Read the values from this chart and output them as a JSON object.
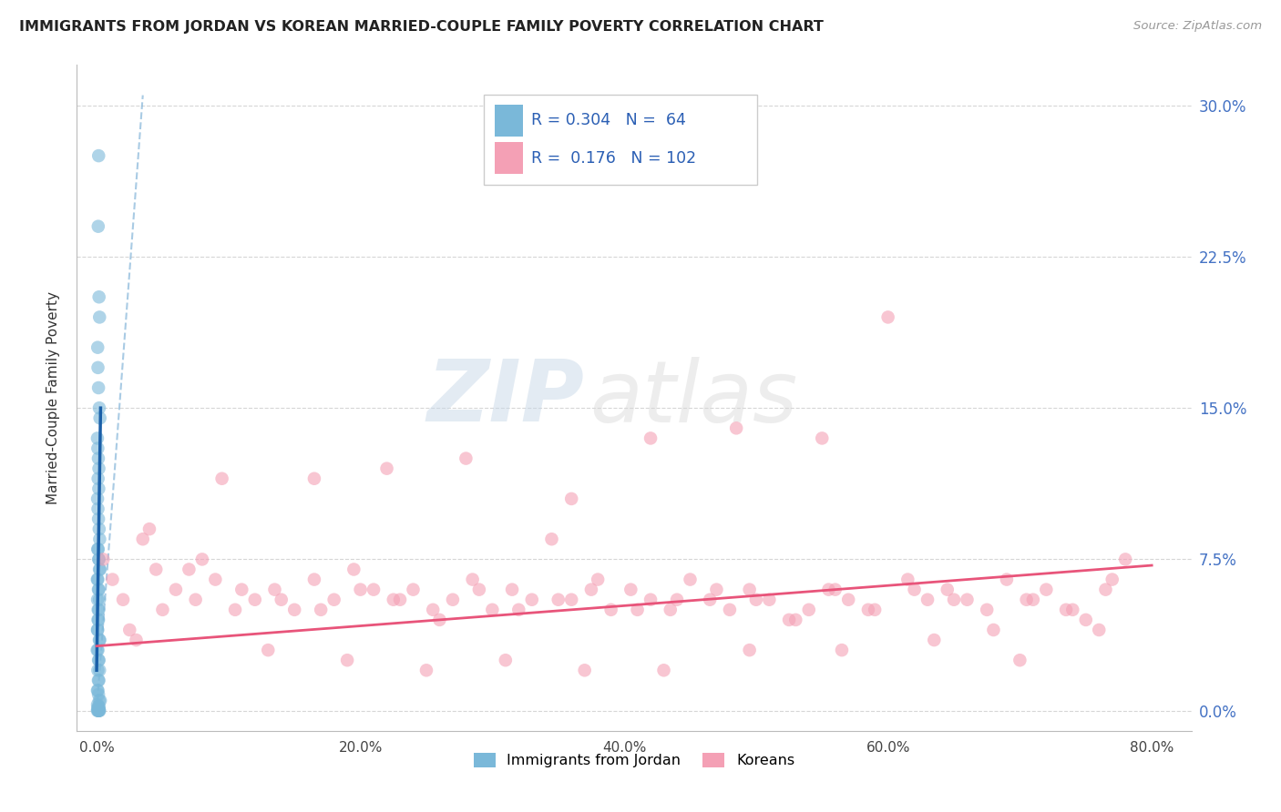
{
  "title": "IMMIGRANTS FROM JORDAN VS KOREAN MARRIED-COUPLE FAMILY POVERTY CORRELATION CHART",
  "source": "Source: ZipAtlas.com",
  "xlabel_ticks": [
    "0.0%",
    "20.0%",
    "40.0%",
    "60.0%",
    "80.0%"
  ],
  "xlabel_tick_vals": [
    0.0,
    20.0,
    40.0,
    60.0,
    80.0
  ],
  "ylabel_ticks": [
    "0.0%",
    "7.5%",
    "15.0%",
    "22.5%",
    "30.0%"
  ],
  "ylabel_tick_vals": [
    0.0,
    7.5,
    15.0,
    22.5,
    30.0
  ],
  "xlim": [
    -1.5,
    83.0
  ],
  "ylim": [
    -1.0,
    32.0
  ],
  "blue_R": 0.304,
  "blue_N": 64,
  "pink_R": 0.176,
  "pink_N": 102,
  "blue_color": "#7ab8d9",
  "pink_color": "#f4a0b5",
  "blue_line_color": "#1a5fa8",
  "pink_line_color": "#e8547a",
  "blue_dash_color": "#85b5d9",
  "background_color": "#ffffff",
  "watermark_zip": "ZIP",
  "watermark_atlas": "atlas",
  "legend_label_blue": "Immigrants from Jordan",
  "legend_label_pink": "Koreans",
  "grid_color": "#cccccc",
  "blue_scatter_x": [
    0.15,
    0.12,
    0.18,
    0.22,
    0.08,
    0.1,
    0.14,
    0.2,
    0.25,
    0.06,
    0.09,
    0.13,
    0.17,
    0.11,
    0.16,
    0.07,
    0.1,
    0.14,
    0.19,
    0.23,
    0.08,
    0.12,
    0.15,
    0.18,
    0.21,
    0.26,
    0.05,
    0.09,
    0.13,
    0.17,
    0.21,
    0.07,
    0.11,
    0.16,
    0.1,
    0.14,
    0.06,
    0.08,
    0.2,
    0.24,
    0.04,
    0.1,
    0.14,
    0.18,
    0.22,
    0.09,
    0.13,
    0.17,
    0.06,
    0.1,
    0.14,
    0.2,
    0.28,
    0.07,
    0.12,
    0.19,
    0.08,
    0.15,
    0.22,
    0.11,
    0.17,
    0.06,
    0.12,
    0.19
  ],
  "blue_scatter_y": [
    27.5,
    24.0,
    20.5,
    19.5,
    18.0,
    17.0,
    16.0,
    15.0,
    14.5,
    13.5,
    13.0,
    12.5,
    12.0,
    11.5,
    11.0,
    10.5,
    10.0,
    9.5,
    9.0,
    8.5,
    8.0,
    8.0,
    7.5,
    7.5,
    7.0,
    7.0,
    6.5,
    6.5,
    6.0,
    6.0,
    5.5,
    5.5,
    5.0,
    5.0,
    4.5,
    4.5,
    4.0,
    4.0,
    3.5,
    3.5,
    3.0,
    3.0,
    2.5,
    2.5,
    2.0,
    2.0,
    1.5,
    1.5,
    1.0,
    1.0,
    0.8,
    0.5,
    0.5,
    0.3,
    0.2,
    0.2,
    0.1,
    0.1,
    0.0,
    0.0,
    0.0,
    0.0,
    0.0,
    0.0
  ],
  "pink_scatter_x": [
    0.5,
    1.2,
    2.0,
    3.5,
    4.5,
    6.0,
    7.5,
    9.0,
    10.5,
    12.0,
    13.5,
    15.0,
    16.5,
    18.0,
    19.5,
    21.0,
    22.5,
    24.0,
    25.5,
    27.0,
    28.5,
    30.0,
    31.5,
    33.0,
    34.5,
    36.0,
    37.5,
    39.0,
    40.5,
    42.0,
    43.5,
    45.0,
    46.5,
    48.0,
    49.5,
    51.0,
    52.5,
    54.0,
    55.5,
    57.0,
    58.5,
    60.0,
    61.5,
    63.0,
    64.5,
    66.0,
    67.5,
    69.0,
    70.5,
    72.0,
    73.5,
    75.0,
    76.5,
    78.0,
    2.5,
    5.0,
    8.0,
    11.0,
    14.0,
    17.0,
    20.0,
    23.0,
    26.0,
    29.0,
    32.0,
    35.0,
    38.0,
    41.0,
    44.0,
    47.0,
    50.0,
    53.0,
    56.0,
    59.0,
    62.0,
    65.0,
    68.0,
    71.0,
    74.0,
    77.0,
    3.0,
    7.0,
    13.0,
    19.0,
    25.0,
    31.0,
    37.0,
    43.0,
    49.5,
    56.5,
    63.5,
    70.0,
    76.0,
    4.0,
    9.5,
    16.5,
    22.0,
    28.0,
    36.0,
    42.0,
    48.5,
    55.0
  ],
  "pink_scatter_y": [
    7.5,
    6.5,
    5.5,
    8.5,
    7.0,
    6.0,
    5.5,
    6.5,
    5.0,
    5.5,
    6.0,
    5.0,
    6.5,
    5.5,
    7.0,
    6.0,
    5.5,
    6.0,
    5.0,
    5.5,
    6.5,
    5.0,
    6.0,
    5.5,
    8.5,
    5.5,
    6.0,
    5.0,
    6.0,
    5.5,
    5.0,
    6.5,
    5.5,
    5.0,
    6.0,
    5.5,
    4.5,
    5.0,
    6.0,
    5.5,
    5.0,
    19.5,
    6.5,
    5.5,
    6.0,
    5.5,
    5.0,
    6.5,
    5.5,
    6.0,
    5.0,
    4.5,
    6.0,
    7.5,
    4.0,
    5.0,
    7.5,
    6.0,
    5.5,
    5.0,
    6.0,
    5.5,
    4.5,
    6.0,
    5.0,
    5.5,
    6.5,
    5.0,
    5.5,
    6.0,
    5.5,
    4.5,
    6.0,
    5.0,
    6.0,
    5.5,
    4.0,
    5.5,
    5.0,
    6.5,
    3.5,
    7.0,
    3.0,
    2.5,
    2.0,
    2.5,
    2.0,
    2.0,
    3.0,
    3.0,
    3.5,
    2.5,
    4.0,
    9.0,
    11.5,
    11.5,
    12.0,
    12.5,
    10.5,
    13.5,
    14.0,
    13.5
  ],
  "pink_regression_x0": 0.0,
  "pink_regression_y0": 3.2,
  "pink_regression_x1": 80.0,
  "pink_regression_y1": 7.2,
  "blue_regression_x0": 0.0,
  "blue_regression_y0": 2.0,
  "blue_regression_x1": 0.3,
  "blue_regression_y1": 15.0,
  "blue_dash_x0": 0.0,
  "blue_dash_y0": 0.0,
  "blue_dash_x1": 3.5,
  "blue_dash_y1": 30.5
}
